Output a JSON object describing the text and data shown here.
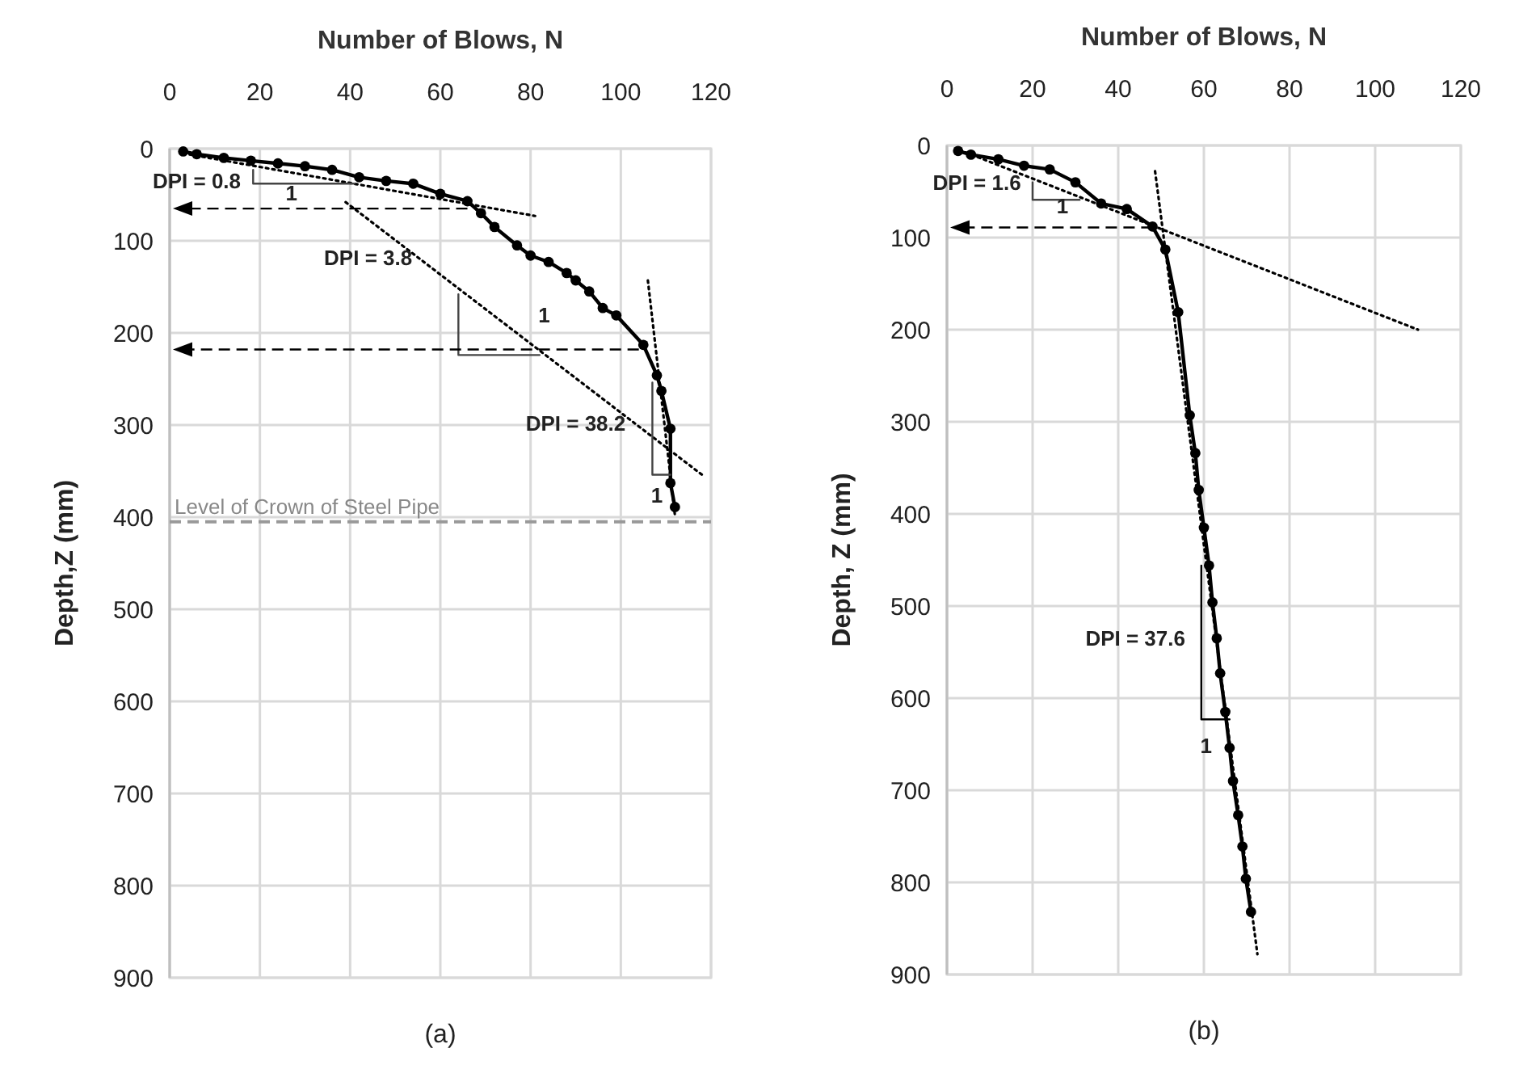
{
  "chart_data": [
    {
      "type": "line",
      "title": "Number of Blows, N",
      "ylabel": "Depth,Z (mm)",
      "xlim": [
        0,
        120
      ],
      "xticks": [
        0,
        20,
        40,
        60,
        80,
        100,
        120
      ],
      "ylim": [
        900,
        0
      ],
      "yticks": [
        0,
        100,
        200,
        300,
        400,
        500,
        600,
        700,
        800,
        900
      ],
      "grid": true,
      "series": [
        {
          "color": "#000000",
          "marker": "circle",
          "line_style": "solid",
          "x": [
            3,
            6,
            12,
            18,
            24,
            30,
            36,
            42,
            48,
            54,
            60,
            66,
            69,
            72,
            77,
            80,
            84,
            88,
            90,
            93,
            96,
            99,
            105,
            108,
            109,
            111,
            111,
            112
          ],
          "values": [
            3,
            6,
            10,
            13,
            16,
            19,
            23,
            31,
            35,
            38,
            49,
            57,
            70,
            85,
            105,
            116,
            123,
            135,
            143,
            155,
            173,
            181,
            213,
            246,
            263,
            304,
            363,
            389
          ]
        },
        {
          "color": "#000000",
          "marker": "none",
          "line_style": "dotted",
          "x": [
            3,
            81
          ],
          "values": [
            5,
            73
          ]
        },
        {
          "color": "#000000",
          "marker": "none",
          "line_style": "dotted",
          "x": [
            39,
            118
          ],
          "values": [
            58,
            354
          ]
        },
        {
          "color": "#000000",
          "marker": "none",
          "line_style": "dotted",
          "x": [
            106,
            112
          ],
          "values": [
            143,
            398
          ]
        },
        {
          "color": "#444444",
          "marker": "none",
          "line_style": "solid",
          "x": [
            18.5,
            18.5,
            41
          ],
          "values": [
            23,
            38,
            38
          ]
        },
        {
          "color": "#444444",
          "marker": "none",
          "line_style": "solid",
          "x": [
            64,
            64,
            82
          ],
          "values": [
            158,
            224,
            224
          ]
        },
        {
          "color": "#444444",
          "marker": "none",
          "line_style": "solid",
          "x": [
            107,
            107,
            111
          ],
          "values": [
            254,
            354,
            354
          ]
        }
      ],
      "ref_lines": [
        {
          "axis": "y",
          "value": 405,
          "label": "Level of Crown of Steel Pipe",
          "color": "#999999",
          "line_style": "dashed"
        }
      ],
      "annotations": [
        "DPI = 0.8",
        "1",
        "DPI = 3.8",
        "1",
        "DPI = 38.2",
        "1",
        "(a)"
      ]
    },
    {
      "type": "line",
      "title": "Number of Blows, N",
      "ylabel": "Depth, Z (mm)",
      "xlim": [
        0,
        120
      ],
      "xticks": [
        0,
        20,
        40,
        60,
        80,
        100,
        120
      ],
      "ylim": [
        900,
        0
      ],
      "yticks": [
        0,
        100,
        200,
        300,
        400,
        500,
        600,
        700,
        800,
        900
      ],
      "grid": true,
      "series": [
        {
          "color": "#000000",
          "marker": "circle",
          "line_style": "solid",
          "x": [
            2.6,
            5.6,
            12,
            18,
            24,
            30,
            36,
            42,
            48,
            51,
            54,
            56.7,
            58,
            58.8,
            60,
            61.2,
            62,
            63,
            63.8,
            65,
            66,
            66.8,
            68,
            69,
            69.8,
            71
          ],
          "values": [
            6,
            10,
            15,
            22,
            26,
            40,
            63,
            69,
            88,
            113,
            181,
            293,
            334,
            374,
            415,
            456,
            496,
            535,
            573,
            615,
            654,
            690,
            727,
            761,
            796,
            832
          ]
        },
        {
          "color": "#000000",
          "marker": "none",
          "line_style": "dotted",
          "x": [
            3,
            110
          ],
          "values": [
            5,
            200
          ]
        },
        {
          "color": "#000000",
          "marker": "none",
          "line_style": "dotted",
          "x": [
            48.6,
            72.5
          ],
          "values": [
            28,
            878
          ]
        },
        {
          "color": "#444444",
          "marker": "none",
          "line_style": "solid",
          "x": [
            20,
            20,
            31
          ],
          "values": [
            40,
            59,
            59
          ]
        },
        {
          "color": "#000000",
          "marker": "none",
          "line_style": "solid",
          "x": [
            59.4,
            59.4,
            66
          ],
          "values": [
            456,
            623,
            623
          ]
        }
      ],
      "annotations": [
        "DPI = 1.6",
        "1",
        "DPI = 37.6",
        "1",
        "(b)"
      ]
    }
  ]
}
